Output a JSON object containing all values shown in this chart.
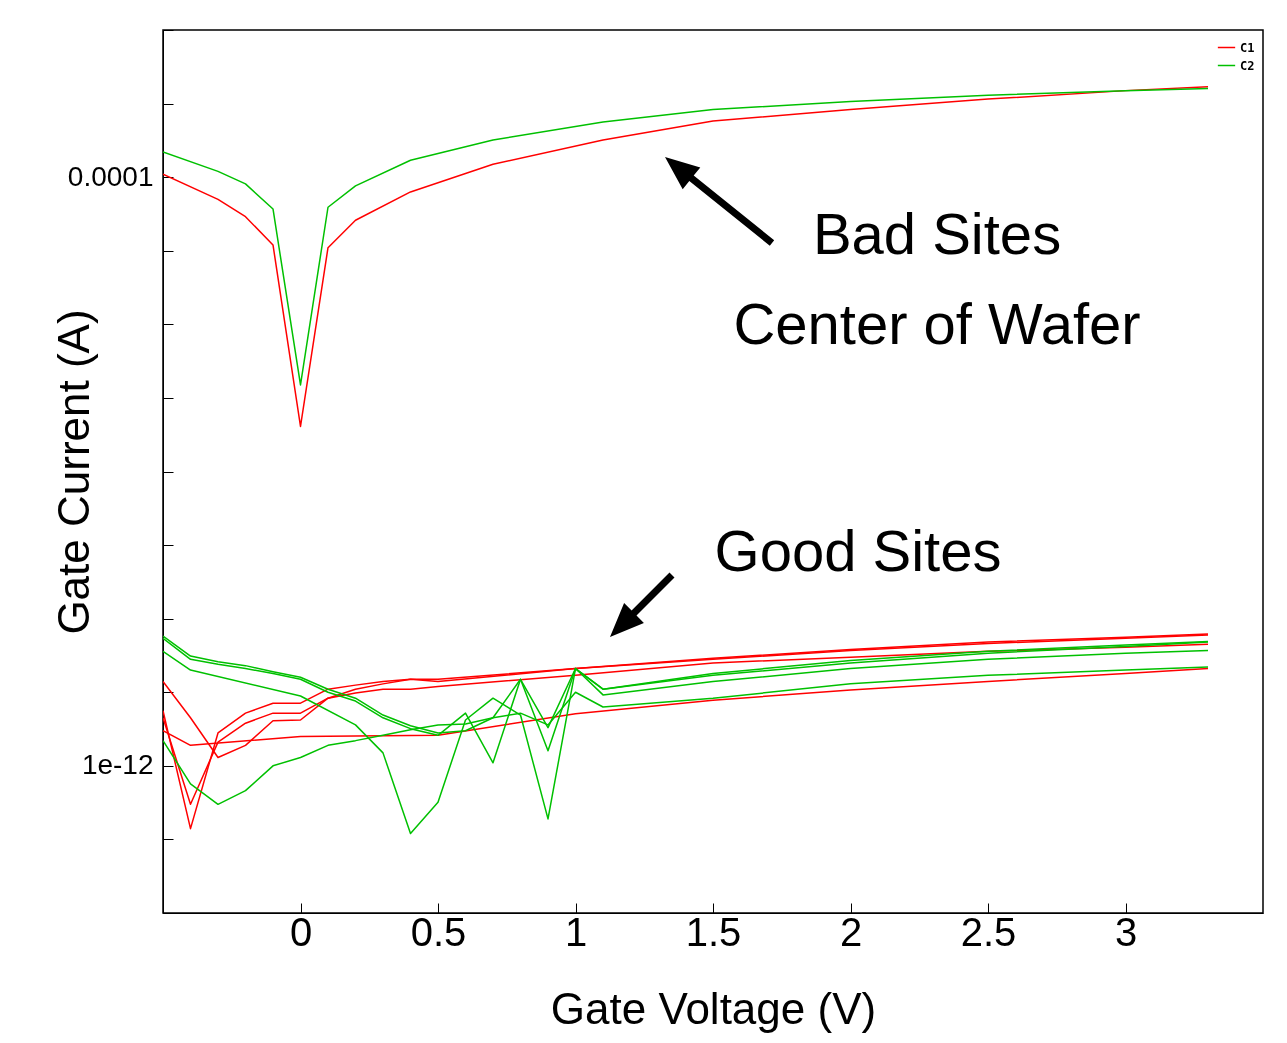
{
  "chart_data": {
    "type": "line",
    "xlabel": "Gate Voltage (V)",
    "ylabel": "Gate Current (A)",
    "log": "y",
    "legend": "top right",
    "grid": false,
    "xlim": [
      -0.5,
      3.5
    ],
    "xticks": [
      0,
      0.5,
      1,
      1.5,
      2,
      2.5,
      3
    ],
    "ylim": [
      1e-14,
      0.01
    ],
    "yticks": [
      {
        "value": 0.01,
        "label": null
      },
      {
        "value": 0.001,
        "label": null
      },
      0.0001,
      {
        "value": 1e-05,
        "label": null
      },
      {
        "value": 1e-06,
        "label": null
      },
      {
        "value": 1e-07,
        "label": null
      },
      {
        "value": 1e-08,
        "label": null
      },
      {
        "value": 1e-09,
        "label": null
      },
      {
        "value": 1e-10,
        "label": null
      },
      {
        "value": 1e-11,
        "label": null
      },
      {
        "value": 1e-12,
        "label": "1e-12"
      },
      {
        "value": 1e-13,
        "label": null
      },
      {
        "value": 1e-14,
        "label": null
      }
    ],
    "annotations": [
      "Bad Sites\nCenter of Wafer",
      "Good Sites"
    ],
    "series": [
      {
        "name": "C1",
        "color": "#ff0000",
        "x": [
          -0.5,
          -0.3,
          -0.2,
          -0.1,
          0,
          0.1,
          0.2,
          0.4,
          0.7,
          1.1,
          1.5,
          2,
          2.5,
          3,
          3.3
        ],
        "values": [
          0.00011,
          5e-05,
          2.9e-05,
          1.2e-05,
          4.1e-08,
          1.1e-05,
          2.6e-05,
          6.3e-05,
          0.00015,
          0.00032,
          0.00058,
          0.00083,
          0.00115,
          0.0015,
          0.0017
        ]
      },
      {
        "name": "C2",
        "color": "#00c000",
        "x": [
          -0.5,
          -0.3,
          -0.2,
          -0.1,
          0,
          0.1,
          0.2,
          0.4,
          0.7,
          1.1,
          1.5,
          2,
          2.5,
          3,
          3.3
        ],
        "values": [
          0.00022,
          0.00012,
          8.1e-05,
          3.7e-05,
          1.5e-07,
          3.9e-05,
          7.6e-05,
          0.00017,
          0.00032,
          0.00056,
          0.00083,
          0.00107,
          0.0013,
          0.0015,
          0.0016
        ]
      },
      {
        "color": "#ff0000",
        "x": [
          -0.5,
          -0.4,
          -0.3,
          -0.2,
          -0.1,
          0,
          0.1,
          0.2,
          0.3,
          0.4,
          0.5,
          1,
          1.5,
          2,
          2.5,
          3,
          3.3
        ],
        "values": [
          5.6e-12,
          1.4e-13,
          2.8e-12,
          5.2e-12,
          7.1e-12,
          7.1e-12,
          1.1e-11,
          1.25e-11,
          1.4e-11,
          1.5e-11,
          1.5e-11,
          2.1e-11,
          2.9e-11,
          3.8e-11,
          4.8e-11,
          5.6e-11,
          6.2e-11
        ]
      },
      {
        "color": "#ff0000",
        "x": [
          -0.5,
          -0.4,
          -0.3,
          -0.2,
          -0.1,
          0,
          0.1,
          0.2,
          0.3,
          0.4,
          0.5,
          1,
          1.5,
          2,
          2.5,
          3,
          3.3
        ],
        "values": [
          1.4e-11,
          4.5e-12,
          1.3e-12,
          1.9e-12,
          4.1e-12,
          4.2e-12,
          8.3e-12,
          1.1e-11,
          1.3e-11,
          1.5e-11,
          1.4e-11,
          2.1e-11,
          2.8e-11,
          3.7e-11,
          4.6e-11,
          5.4e-11,
          6e-11
        ]
      },
      {
        "color": "#ff0000",
        "x": [
          -0.5,
          -0.4,
          -0.3,
          -0.2,
          -0.1,
          0,
          0.1,
          0.2,
          0.3,
          0.4,
          0.5,
          1,
          1.5,
          2,
          2.5,
          3,
          3.3
        ],
        "values": [
          4.5e-12,
          3e-13,
          2.1e-12,
          3.8e-12,
          5.2e-12,
          5.2e-12,
          8.3e-12,
          9.8e-12,
          1.1e-11,
          1.1e-11,
          1.2e-11,
          1.7e-11,
          2.5e-11,
          3e-11,
          3.6e-11,
          4.1e-11,
          4.5e-11
        ]
      },
      {
        "color": "#ff0000",
        "x": [
          -0.5,
          -0.4,
          0,
          0.5,
          1,
          1.5,
          2,
          2.5,
          3,
          3.3
        ],
        "values": [
          3e-12,
          1.9e-12,
          2.5e-12,
          2.6e-12,
          5.1e-12,
          7.8e-12,
          1.07e-11,
          1.4e-11,
          1.8e-11,
          2.1e-11
        ]
      },
      {
        "color": "#00c000",
        "x": [
          -0.5,
          -0.4,
          -0.3,
          -0.2,
          -0.1,
          0,
          0.1,
          0.2,
          0.3,
          0.4,
          0.5,
          0.6,
          0.7,
          0.8,
          0.9,
          1,
          1.1,
          1.5,
          2,
          2.5,
          3,
          3.3
        ],
        "values": [
          5.8e-11,
          3.1e-11,
          2.6e-11,
          2.3e-11,
          1.9e-11,
          1.6e-11,
          1.1e-11,
          8.3e-12,
          4.9e-12,
          3.5e-12,
          2.8e-12,
          3e-12,
          4.5e-12,
          1.5e-11,
          1.6e-12,
          2.1e-11,
          1.1e-11,
          1.7e-11,
          2.5e-11,
          3.4e-11,
          4.2e-11,
          4.8e-11
        ]
      },
      {
        "color": "#00c000",
        "x": [
          -0.5,
          -0.4,
          -0.3,
          -0.2,
          -0.1,
          0,
          0.1,
          0.2,
          0.3,
          0.4,
          0.5,
          0.6,
          0.7,
          0.8,
          0.9,
          1,
          1.1,
          1.5,
          2,
          2.5,
          3,
          3.3
        ],
        "values": [
          5.4e-11,
          2.8e-11,
          2.4e-11,
          2.1e-11,
          1.8e-11,
          1.5e-11,
          1e-11,
          7.6e-12,
          4.5e-12,
          3.2e-12,
          2.6e-12,
          5.2e-12,
          1.1e-12,
          1.5e-11,
          3.3e-12,
          2.1e-11,
          1.1e-11,
          1.8e-11,
          2.7e-11,
          3.6e-11,
          4.4e-11,
          4.9e-11
        ]
      },
      {
        "color": "#00c000",
        "x": [
          -0.5,
          -0.4,
          0,
          0.2,
          0.3,
          0.4,
          0.5,
          0.6,
          0.7,
          0.8,
          0.9,
          1,
          1.1,
          1.5,
          2,
          2.5,
          3,
          3.3
        ],
        "values": [
          3.6e-11,
          2e-11,
          8.9e-12,
          3.6e-12,
          1.5e-12,
          1.2e-13,
          3.2e-13,
          4.2e-12,
          8.3e-12,
          4.9e-12,
          1.9e-13,
          2.1e-11,
          9.2e-12,
          1.4e-11,
          2.1e-11,
          2.8e-11,
          3.4e-11,
          3.7e-11
        ]
      },
      {
        "color": "#00c000",
        "x": [
          -0.5,
          -0.4,
          -0.3,
          -0.2,
          -0.1,
          0,
          0.1,
          0.2,
          0.3,
          0.4,
          0.5,
          0.6,
          0.7,
          0.8,
          0.9,
          1,
          1.1,
          1.5,
          2,
          2.5,
          3,
          3.3
        ],
        "values": [
          2.2e-12,
          5.7e-13,
          3e-13,
          4.6e-13,
          1e-12,
          1.3e-12,
          1.9e-12,
          2.2e-12,
          2.6e-12,
          3.1e-12,
          3.6e-12,
          3.7e-12,
          4.5e-12,
          5.2e-12,
          3.6e-12,
          1e-11,
          6.3e-12,
          8.3e-12,
          1.3e-11,
          1.7e-11,
          2e-11,
          2.2e-11
        ]
      }
    ]
  }
}
